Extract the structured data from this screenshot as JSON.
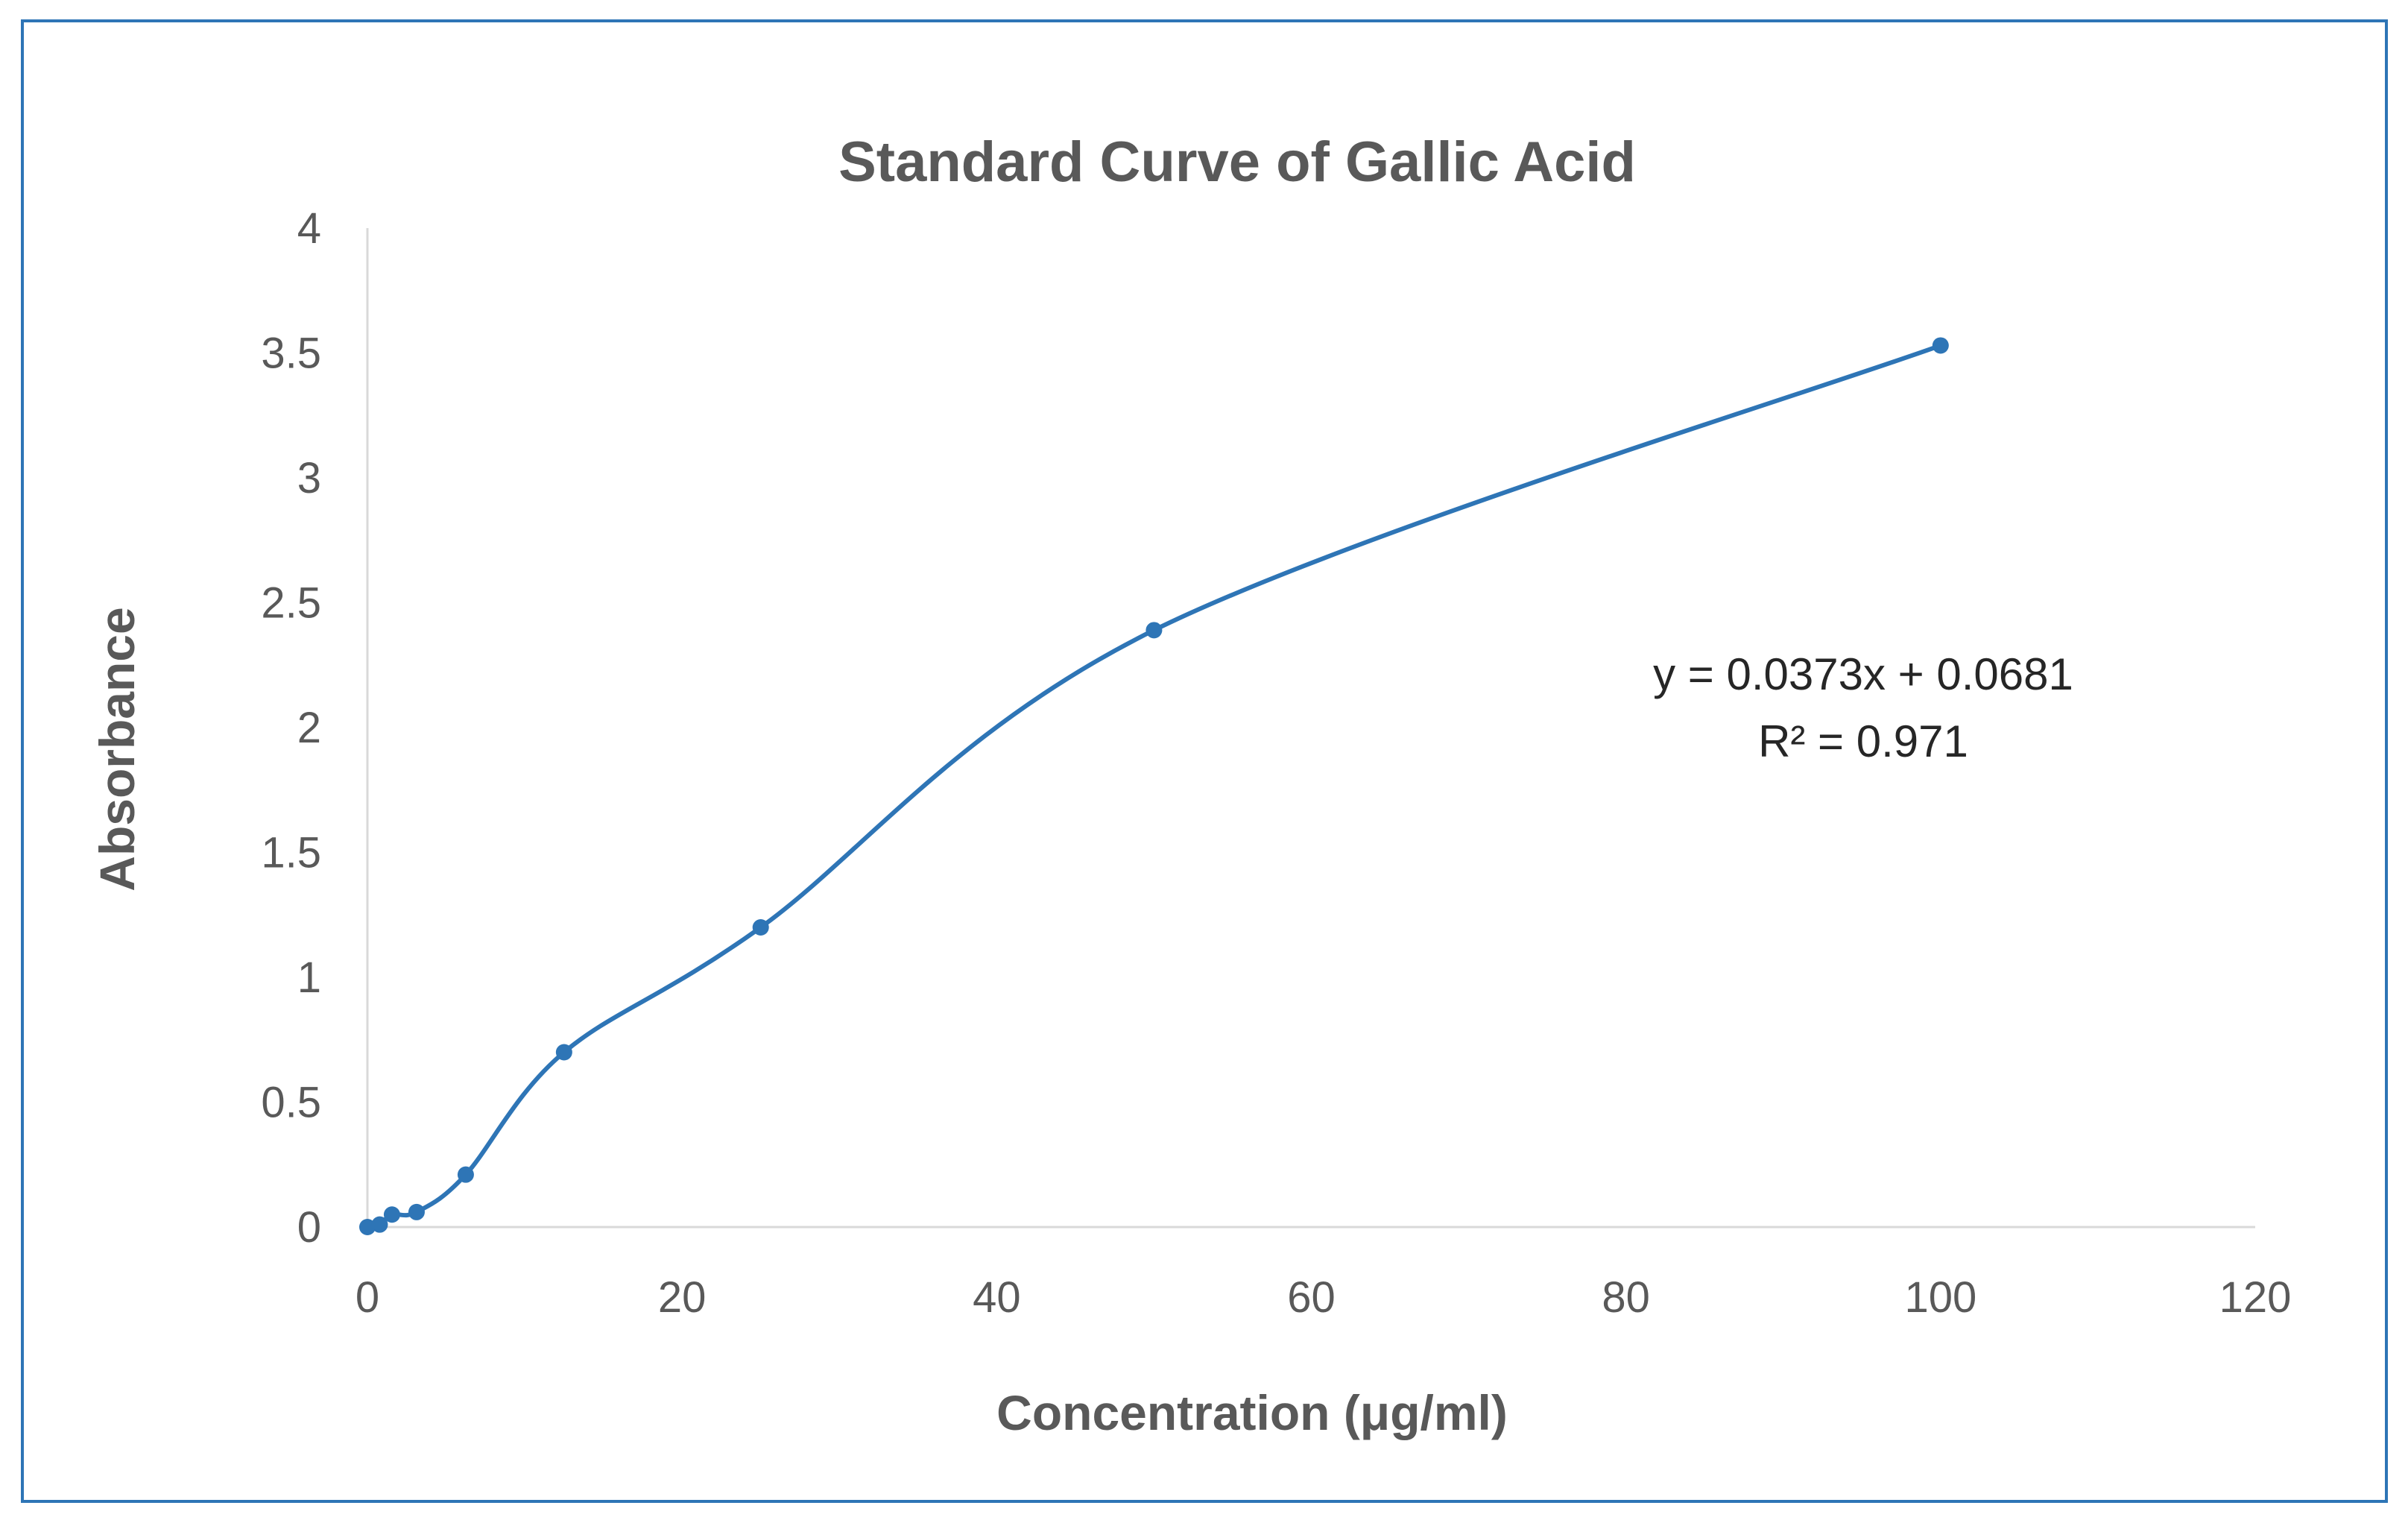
{
  "chart_data": {
    "type": "scatter",
    "title": "Standard Curve of Gallic Acid",
    "xlabel": "Concentration  (μg/ml)",
    "ylabel": "Absorbance",
    "xlim": [
      0,
      120
    ],
    "ylim": [
      0,
      4
    ],
    "xticks": [
      "0",
      "20",
      "40",
      "60",
      "80",
      "100",
      "120"
    ],
    "yticks": [
      "0",
      "0.5",
      "1",
      "1.5",
      "2",
      "2.5",
      "3",
      "3.5",
      "4"
    ],
    "grid": false,
    "line_style": "smoothed",
    "series": [
      {
        "color": "#2e75b6",
        "x": [
          0,
          0.78,
          1.56,
          3.125,
          6.25,
          12.5,
          25,
          50,
          100
        ],
        "y": [
          0.0,
          0.01,
          0.05,
          0.06,
          0.21,
          0.7,
          1.2,
          2.39,
          3.53
        ]
      }
    ],
    "annotations": [
      "y = 0.0373x + 0.0681",
      "R² = 0.971"
    ]
  }
}
